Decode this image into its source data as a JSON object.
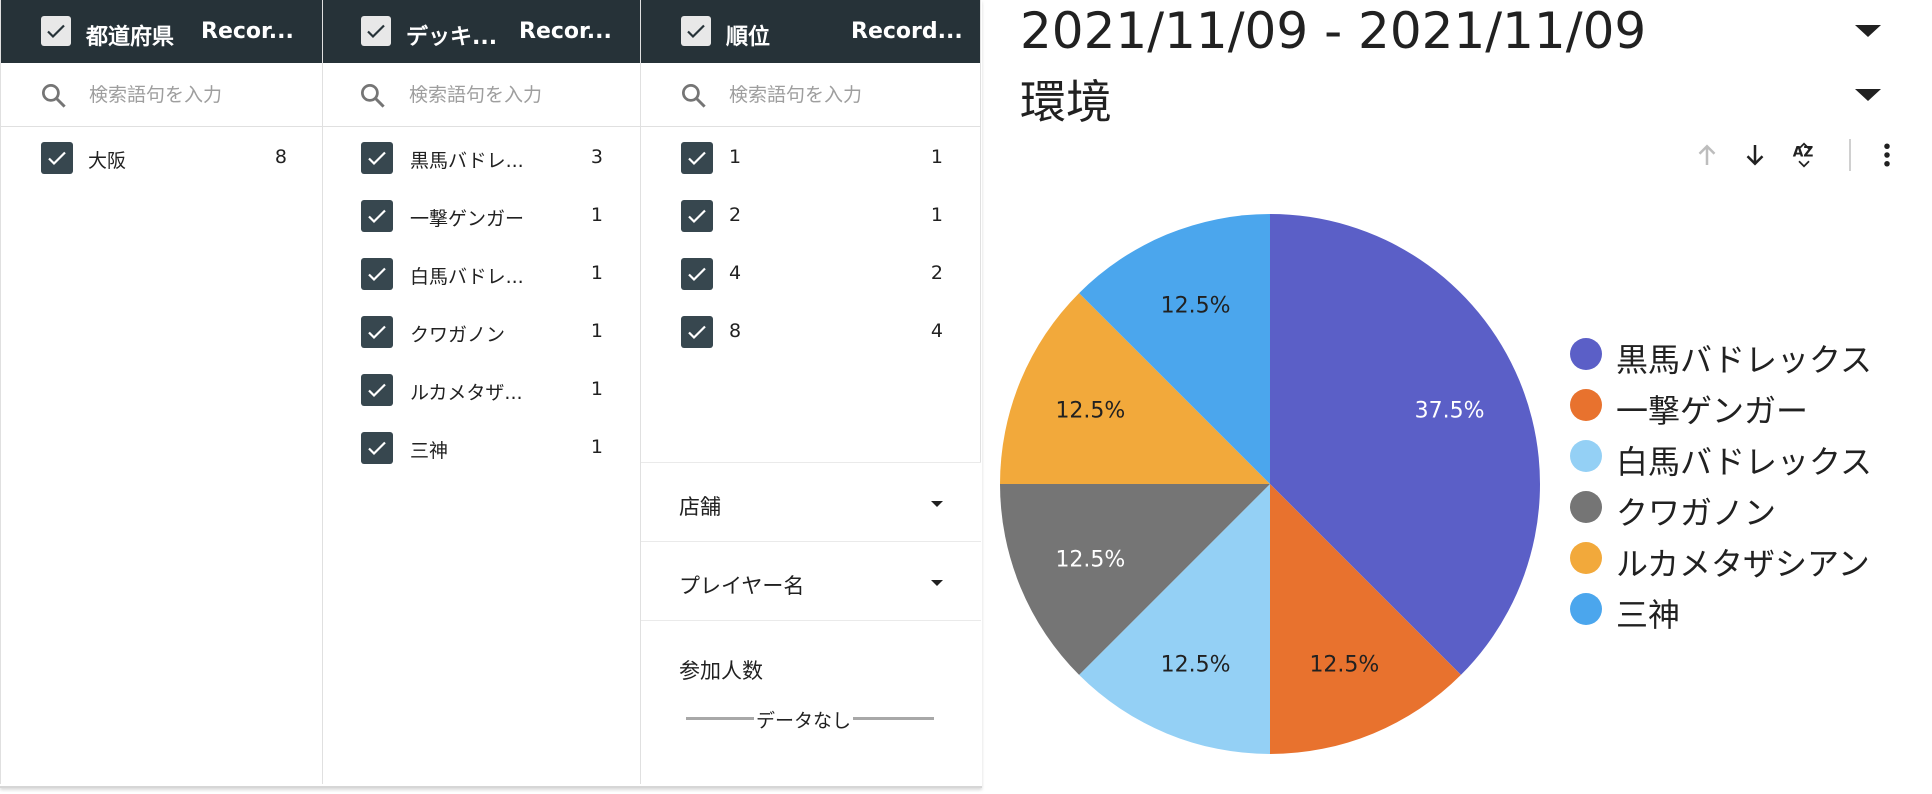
{
  "filters": {
    "prefecture": {
      "title": "都道府県",
      "record_label": "Recor...",
      "search_placeholder": "検索語句を入力",
      "items": [
        {
          "label": "大阪",
          "count": "8"
        }
      ]
    },
    "deck": {
      "title": "デッキ...",
      "record_label": "Recor...",
      "search_placeholder": "検索語句を入力",
      "items": [
        {
          "label": "黒馬バドレ...",
          "count": "3"
        },
        {
          "label": "一撃ゲンガー",
          "count": "1"
        },
        {
          "label": "白馬バドレ...",
          "count": "1"
        },
        {
          "label": "クワガノン",
          "count": "1"
        },
        {
          "label": "ルカメタザ...",
          "count": "1"
        },
        {
          "label": "三神",
          "count": "1"
        }
      ]
    },
    "rank": {
      "title": "順位",
      "record_label": "Record...",
      "search_placeholder": "検索語句を入力",
      "items": [
        {
          "label": "1",
          "count": "1"
        },
        {
          "label": "2",
          "count": "1"
        },
        {
          "label": "4",
          "count": "2"
        },
        {
          "label": "8",
          "count": "4"
        }
      ]
    },
    "store_label": "店舗",
    "player_label": "プレイヤー名",
    "participants_label": "参加人数",
    "no_data_label": "データなし"
  },
  "date_range": "2021/11/09 - 2021/11/09",
  "dimension_label": "環境",
  "toolbar_icons": [
    "sort-ascending-icon",
    "sort-descending-icon",
    "sort-az-icon",
    "more-vert-icon"
  ],
  "chart_data": {
    "type": "pie",
    "categories": [
      "黒馬バドレックス",
      "一撃ゲンガー",
      "白馬バドレックス",
      "クワガノン",
      "ルカメタザシアン",
      "三神"
    ],
    "values": [
      37.5,
      12.5,
      12.5,
      12.5,
      12.5,
      12.5
    ],
    "labels": [
      "37.5%",
      "12.5%",
      "12.5%",
      "12.5%",
      "12.5%",
      "12.5%"
    ],
    "colors": [
      "#5b5fc7",
      "#e8722e",
      "#94d0f5",
      "#757575",
      "#f2a93b",
      "#4ba6ed"
    ],
    "label_colors": [
      "#ffffff",
      "#212121",
      "#212121",
      "#ffffff",
      "#212121",
      "#212121"
    ],
    "legend_position": "right"
  }
}
